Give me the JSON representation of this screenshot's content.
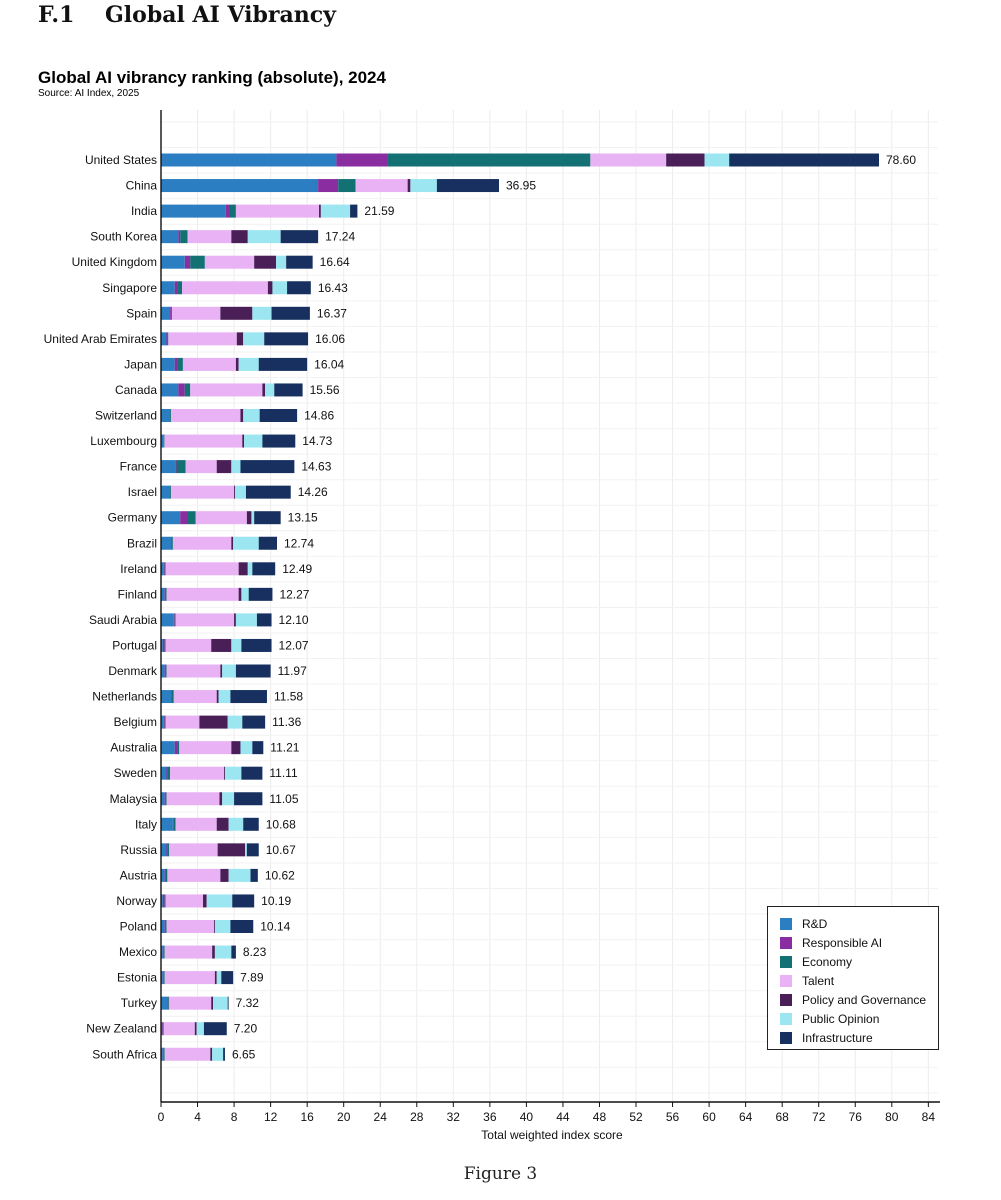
{
  "page": {
    "section_heading": "F.1    Global AI Vibrancy",
    "caption": "Figure 3"
  },
  "chart_data": {
    "type": "bar",
    "orientation": "horizontal",
    "stacked": true,
    "title": "Global AI vibrancy ranking (absolute), 2024",
    "subtitle": "Source: AI Index, 2025",
    "xlabel": "Total weighted index score",
    "ylabel": "",
    "xlim": [
      0,
      85
    ],
    "xticks": [
      0,
      4,
      8,
      12,
      16,
      20,
      24,
      28,
      32,
      36,
      40,
      44,
      48,
      52,
      56,
      60,
      64,
      68,
      72,
      76,
      80,
      84
    ],
    "grid": true,
    "legend_position": "bottom-right",
    "categories": [
      "United States",
      "China",
      "India",
      "South Korea",
      "United Kingdom",
      "Singapore",
      "Spain",
      "United Arab Emirates",
      "Japan",
      "Canada",
      "Switzerland",
      "Luxembourg",
      "France",
      "Israel",
      "Germany",
      "Brazil",
      "Ireland",
      "Finland",
      "Saudi Arabia",
      "Portugal",
      "Denmark",
      "Netherlands",
      "Belgium",
      "Australia",
      "Sweden",
      "Malaysia",
      "Italy",
      "Russia",
      "Austria",
      "Norway",
      "Poland",
      "Mexico",
      "Estonia",
      "Turkey",
      "New Zealand",
      "South Africa"
    ],
    "totals": [
      "78.60",
      "36.95",
      "21.59",
      "17.24",
      "16.64",
      "16.43",
      "16.37",
      "16.06",
      "16.04",
      "15.56",
      "14.86",
      "14.73",
      "14.63",
      "14.26",
      "13.15",
      "12.74",
      "12.49",
      "12.27",
      "12.10",
      "12.07",
      "11.97",
      "11.58",
      "11.36",
      "11.21",
      "11.11",
      "11.05",
      "10.68",
      "10.67",
      "10.62",
      "10.19",
      "10.14",
      "8.23",
      "7.89",
      "7.32",
      "7.20",
      "6.65"
    ],
    "series": [
      {
        "name": "R&D",
        "color": "#2a7ec1",
        "values": [
          19.2,
          17.2,
          7.1,
          1.9,
          2.6,
          1.5,
          1.0,
          0.6,
          1.5,
          1.9,
          0.9,
          0.3,
          1.6,
          0.9,
          2.1,
          1.1,
          0.3,
          0.4,
          1.4,
          0.2,
          0.4,
          1.1,
          0.3,
          1.5,
          0.6,
          0.4,
          1.3,
          0.6,
          0.4,
          0.2,
          0.4,
          0.2,
          0.2,
          0.7,
          0.1,
          0.2
        ]
      },
      {
        "name": "Responsible AI",
        "color": "#8a2da0",
        "values": [
          5.6,
          2.2,
          0.4,
          0.2,
          0.6,
          0.3,
          0.1,
          0.1,
          0.3,
          0.7,
          0.1,
          0.05,
          0.1,
          0.1,
          0.8,
          0.1,
          0.1,
          0.1,
          0.1,
          0.2,
          0.1,
          0.1,
          0.1,
          0.3,
          0.1,
          0.1,
          0.1,
          0.1,
          0.1,
          0.2,
          0.1,
          0.1,
          0.1,
          0.1,
          0.1,
          0.1
        ]
      },
      {
        "name": "Economy",
        "color": "#137073",
        "values": [
          22.2,
          1.9,
          0.7,
          0.8,
          1.6,
          0.5,
          0.1,
          0.1,
          0.6,
          0.6,
          0.1,
          0.05,
          1.0,
          0.1,
          0.9,
          0.1,
          0.1,
          0.1,
          0.1,
          0.1,
          0.1,
          0.2,
          0.1,
          0.2,
          0.3,
          0.1,
          0.2,
          0.2,
          0.2,
          0.1,
          0.1,
          0.1,
          0.1,
          0.1,
          0.1,
          0.1
        ]
      },
      {
        "name": "Talent",
        "color": "#e9b2f4",
        "values": [
          8.3,
          5.7,
          9.1,
          4.8,
          5.4,
          9.4,
          5.3,
          7.5,
          5.8,
          7.9,
          7.6,
          8.5,
          3.4,
          6.9,
          5.6,
          6.4,
          8.0,
          7.9,
          6.4,
          5.0,
          5.9,
          4.7,
          3.7,
          5.7,
          5.9,
          5.8,
          4.5,
          5.3,
          5.8,
          4.1,
          5.2,
          5.2,
          5.5,
          4.6,
          3.4,
          5.0
        ]
      },
      {
        "name": "Policy and Governance",
        "color": "#4a1f58",
        "values": [
          4.2,
          0.3,
          0.2,
          1.8,
          2.4,
          0.5,
          3.5,
          0.7,
          0.3,
          0.3,
          0.3,
          0.2,
          1.6,
          0.1,
          0.5,
          0.2,
          1.0,
          0.3,
          0.2,
          2.2,
          0.2,
          0.2,
          3.1,
          1.0,
          0.1,
          0.3,
          1.3,
          3.0,
          0.9,
          0.4,
          0.1,
          0.3,
          0.2,
          0.2,
          0.2,
          0.2
        ]
      },
      {
        "name": "Public Opinion",
        "color": "#9be6f0",
        "values": [
          2.7,
          2.9,
          3.2,
          3.6,
          1.1,
          1.6,
          2.1,
          2.3,
          2.2,
          1.0,
          1.8,
          2.0,
          1.0,
          1.2,
          0.3,
          2.8,
          0.5,
          0.8,
          2.3,
          1.1,
          1.5,
          1.3,
          1.6,
          1.3,
          1.8,
          1.3,
          1.6,
          0.2,
          2.4,
          2.8,
          1.7,
          1.8,
          0.5,
          1.6,
          0.8,
          1.2
        ]
      },
      {
        "name": "Infrastructure",
        "color": "#17305f",
        "values": [
          16.4,
          6.8,
          0.8,
          4.1,
          2.9,
          2.6,
          4.2,
          4.8,
          5.3,
          3.1,
          4.1,
          3.6,
          5.9,
          4.9,
          2.9,
          2.0,
          2.5,
          2.6,
          1.6,
          3.3,
          3.8,
          4.0,
          2.5,
          1.2,
          2.3,
          3.1,
          1.7,
          1.3,
          0.8,
          2.4,
          2.5,
          0.5,
          1.3,
          0.1,
          2.5,
          0.2
        ]
      }
    ]
  }
}
